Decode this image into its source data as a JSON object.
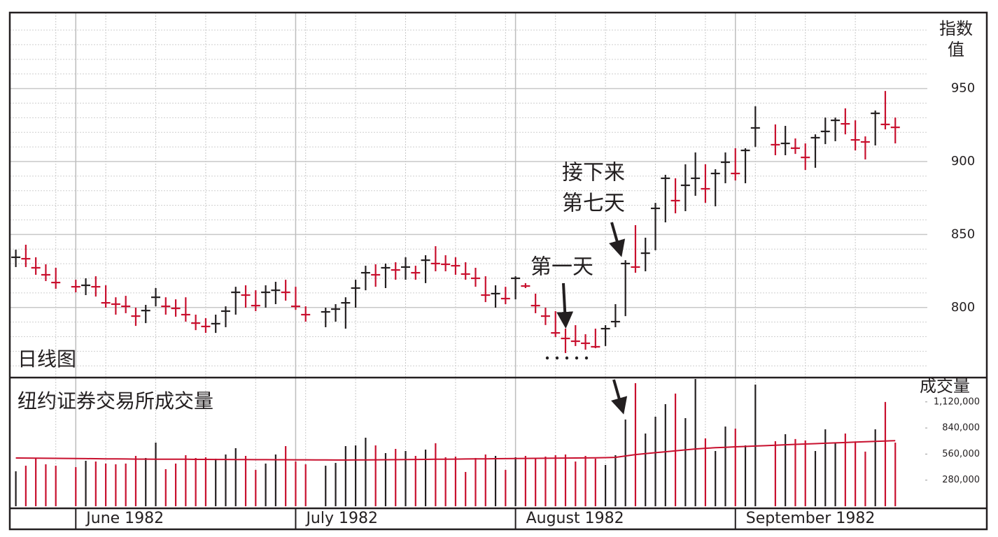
{
  "chart_data": [
    {
      "type": "ohlc",
      "panel_label": "日线图",
      "y_label": [
        "指数",
        "值"
      ],
      "annotations": {
        "first_day": "第一天",
        "seventh_day": [
          "接下来",
          "第七天"
        ]
      },
      "ylim": [
        752,
        1002
      ],
      "yticks": [
        800,
        850,
        900,
        950
      ],
      "grid": true,
      "up_color": "#231f20",
      "down_color": "#c8102e",
      "high": [
        839.6,
        843.0,
        834.4,
        829.6,
        827.2,
        null,
        819.0,
        820.0,
        821.4,
        815.2,
        807.0,
        808.0,
        799.9,
        801.8,
        813.3,
        807.0,
        805.6,
        807.0,
        795.1,
        792.7,
        795.1,
        800.8,
        814.2,
        815.2,
        811.8,
        815.2,
        817.6,
        819.0,
        814.2,
        800.8,
        null,
        799.9,
        802.3,
        807.0,
        819.0,
        828.6,
        829.6,
        830.1,
        831.0,
        834.4,
        828.6,
        835.8,
        842.0,
        835.8,
        834.4,
        831.0,
        827.2,
        821.4,
        815.2,
        814.2,
        821.4,
        816.7,
        809.5,
        799.9,
        797.5,
        785.5,
        787.9,
        781.7,
        785.5,
        787.9,
        802.3,
        832.4,
        856.4,
        847.8,
        871.7,
        890.9,
        888.5,
        898.1,
        906.2,
        898.1,
        894.7,
        906.2,
        909.1,
        909.1,
        937.8,
        null,
        925.4,
        924.4,
        915.8,
        912.4,
        918.6,
        930.1,
        930.1,
        936.4,
        928.2,
        917.2,
        934.9,
        948.3,
        930.1
      ],
      "low": [
        827.7,
        827.7,
        822.4,
        818.1,
        812.8,
        null,
        810.4,
        808.5,
        807.5,
        799.9,
        795.1,
        796.1,
        787.4,
        789.3,
        800.8,
        795.1,
        793.7,
        790.3,
        784.5,
        782.6,
        782.6,
        786.5,
        795.1,
        799.9,
        797.5,
        799.9,
        802.3,
        804.7,
        798.4,
        790.3,
        null,
        786.5,
        790.3,
        785.5,
        799.9,
        811.8,
        814.2,
        813.3,
        819.0,
        819.0,
        819.0,
        816.7,
        824.8,
        824.8,
        822.4,
        819.0,
        814.2,
        803.7,
        799.9,
        802.3,
        805.6,
        813.3,
        796.1,
        788.0,
        779.8,
        768.8,
        773.6,
        771.1,
        772.1,
        773.6,
        786.5,
        794.1,
        823.8,
        824.8,
        839.2,
        858.3,
        864.5,
        866.0,
        876.5,
        871.7,
        869.3,
        885.1,
        887.0,
        885.1,
        910.0,
        null,
        904.3,
        904.3,
        905.2,
        894.2,
        895.7,
        911.9,
        913.9,
        918.6,
        907.6,
        901.4,
        911.0,
        922.0,
        912.4
      ],
      "close": [
        834.4,
        833.4,
        827.2,
        822.4,
        817.1,
        null,
        814.2,
        815.2,
        814.2,
        803.2,
        802.3,
        800.8,
        794.1,
        797.9,
        807.0,
        800.8,
        799.4,
        795.1,
        789.3,
        787.0,
        788.9,
        797.5,
        810.4,
        808.5,
        801.3,
        810.4,
        811.8,
        810.4,
        800.8,
        795.1,
        null,
        797.0,
        798.9,
        803.2,
        813.3,
        823.8,
        822.4,
        827.2,
        825.7,
        827.7,
        823.8,
        832.4,
        830.1,
        829.6,
        828.6,
        822.9,
        820.0,
        808.5,
        809.5,
        806.1,
        820.0,
        814.7,
        801.3,
        794.1,
        782.6,
        778.8,
        776.9,
        775.5,
        773.1,
        785.5,
        790.3,
        830.1,
        827.7,
        837.2,
        867.9,
        888.5,
        873.2,
        883.7,
        888.5,
        881.3,
        891.8,
        899.5,
        891.8,
        907.6,
        923.0,
        null,
        911.5,
        912.4,
        909.1,
        902.8,
        916.3,
        920.6,
        928.2,
        925.8,
        914.8,
        913.4,
        933.0,
        925.4,
        923.4
      ]
    },
    {
      "type": "bar",
      "title": "纽约证券交易所成交量",
      "y_label": "成交量",
      "ylim": [
        0,
        1381000
      ],
      "yticks": [
        {
          "value": 280000,
          "label": "280,000"
        },
        {
          "value": 560000,
          "label": "560,000"
        },
        {
          "value": 840000,
          "label": "840,000"
        },
        {
          "value": 1120000,
          "label": "1,120,000"
        }
      ],
      "categories": [
        null,
        null,
        null,
        null,
        null,
        null,
        "June 1982",
        null,
        null,
        null,
        null,
        null,
        null,
        null,
        null,
        null,
        null,
        null,
        null,
        null,
        null,
        null,
        null,
        null,
        null,
        null,
        null,
        null,
        "July 1982",
        null,
        null,
        null,
        null,
        null,
        null,
        null,
        null,
        null,
        null,
        null,
        null,
        null,
        null,
        null,
        null,
        null,
        null,
        null,
        null,
        null,
        "August 1982",
        null,
        null,
        null,
        null,
        null,
        null,
        null,
        null,
        null,
        null,
        null,
        null,
        null,
        null,
        null,
        null,
        null,
        null,
        null,
        null,
        null,
        "September 1982",
        null,
        null,
        null,
        null,
        null,
        null,
        null,
        null,
        null,
        null,
        null,
        null,
        null,
        null,
        null,
        null
      ],
      "values": [
        375000,
        435000,
        518000,
        450000,
        435000,
        null,
        420000,
        488000,
        480000,
        458000,
        450000,
        458000,
        540000,
        518000,
        683000,
        398000,
        458000,
        548000,
        518000,
        525000,
        510000,
        555000,
        623000,
        540000,
        390000,
        458000,
        555000,
        645000,
        480000,
        450000,
        null,
        435000,
        465000,
        645000,
        653000,
        736000,
        653000,
        570000,
        615000,
        593000,
        540000,
        608000,
        676000,
        525000,
        533000,
        368000,
        518000,
        555000,
        540000,
        390000,
        525000,
        540000,
        518000,
        533000,
        548000,
        555000,
        480000,
        540000,
        510000,
        443000,
        548000,
        931000,
        1321000,
        781000,
        961000,
        1096000,
        1209000,
        946000,
        1366000,
        728000,
        593000,
        856000,
        833000,
        653000,
        1306000,
        null,
        698000,
        773000,
        721000,
        706000,
        593000,
        826000,
        683000,
        781000,
        691000,
        586000,
        826000,
        1119000,
        683000
      ],
      "average_color": "#c8102e",
      "average": [
        518000,
        517000,
        516000,
        515000,
        514000,
        513000,
        512000,
        511000,
        510000,
        509000,
        508000,
        507000,
        506000,
        506000,
        505000,
        505000,
        504000,
        504000,
        503000,
        503000,
        502000,
        502000,
        501000,
        501000,
        500000,
        500000,
        499000,
        499000,
        498000,
        498000,
        497000,
        497000,
        496000,
        496000,
        497000,
        497000,
        498000,
        499000,
        500000,
        501000,
        502000,
        503000,
        504000,
        505000,
        506000,
        507000,
        508000,
        509000,
        510000,
        511000,
        512000,
        513000,
        514000,
        515000,
        516000,
        517000,
        518000,
        519000,
        520000,
        522000,
        525000,
        540000,
        555000,
        565000,
        575000,
        585000,
        595000,
        605000,
        615000,
        622000,
        628000,
        633000,
        638000,
        642000,
        646000,
        650000,
        655000,
        660000,
        664000,
        668000,
        672000,
        676000,
        680000,
        684000,
        688000,
        692000,
        696000,
        700000,
        704000
      ]
    }
  ]
}
